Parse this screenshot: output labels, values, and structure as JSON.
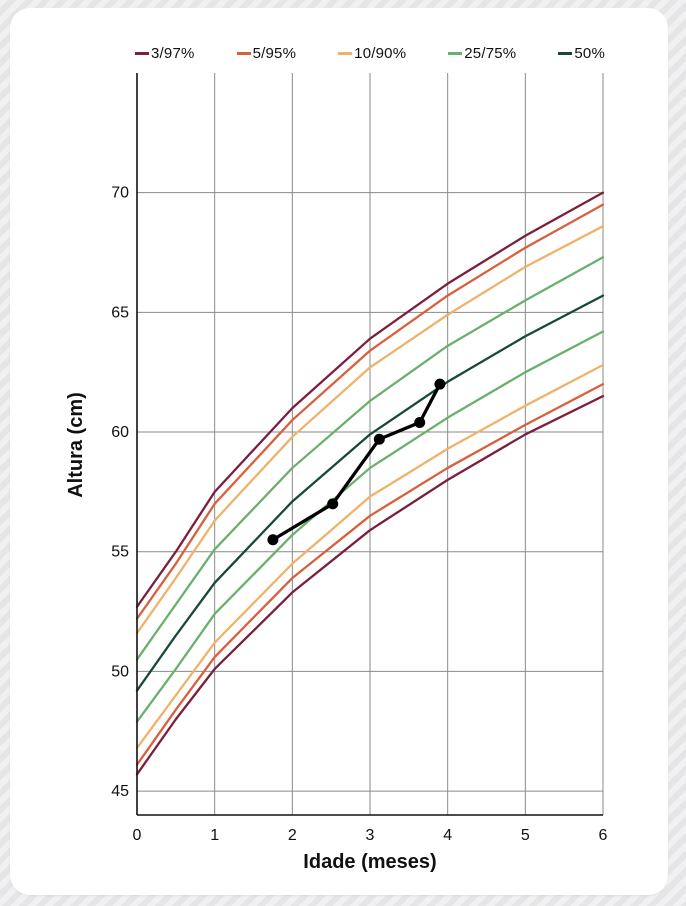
{
  "chart_data": {
    "type": "line",
    "xlabel": "Idade (meses)",
    "ylabel": "Altura (cm)",
    "xlim": [
      0,
      6
    ],
    "ylim": [
      44,
      75
    ],
    "x_ticks": [
      0,
      1,
      2,
      3,
      4,
      5,
      6
    ],
    "y_ticks": [
      45,
      50,
      55,
      60,
      65,
      70
    ],
    "grid": true,
    "legend_position": "top",
    "x": [
      0,
      0.5,
      1,
      2,
      3,
      4,
      5,
      6
    ],
    "series": [
      {
        "name": "3/97%",
        "group": "3/97%",
        "color": "#7a1f3d",
        "values": [
          52.7,
          55.0,
          57.5,
          61.0,
          63.9,
          66.2,
          68.2,
          70.0
        ]
      },
      {
        "name": "5/95%",
        "group": "5/95%",
        "color": "#d9603c",
        "values": [
          52.2,
          54.5,
          57.0,
          60.5,
          63.4,
          65.7,
          67.7,
          69.5
        ]
      },
      {
        "name": "10/90%",
        "group": "10/90%",
        "color": "#f0b26b",
        "values": [
          51.6,
          53.9,
          56.3,
          59.8,
          62.7,
          64.9,
          66.9,
          68.6
        ]
      },
      {
        "name": "25/75%",
        "group": "25/75%",
        "color": "#6ab06d",
        "values": [
          50.5,
          52.8,
          55.1,
          58.5,
          61.3,
          63.6,
          65.5,
          67.3
        ]
      },
      {
        "name": "50%",
        "group": "50%",
        "color": "#17493a",
        "values": [
          49.2,
          51.5,
          53.7,
          57.1,
          59.9,
          62.1,
          64.0,
          65.7
        ]
      },
      {
        "group": "25/75%",
        "color": "#6ab06d",
        "values": [
          47.9,
          50.1,
          52.4,
          55.7,
          58.5,
          60.6,
          62.5,
          64.2
        ]
      },
      {
        "group": "10/90%",
        "color": "#f0b26b",
        "values": [
          46.8,
          49.0,
          51.2,
          54.5,
          57.3,
          59.3,
          61.1,
          62.8
        ]
      },
      {
        "group": "5/95%",
        "color": "#d9603c",
        "values": [
          46.1,
          48.4,
          50.6,
          53.9,
          56.5,
          58.5,
          60.3,
          62.0
        ]
      },
      {
        "group": "3/97%",
        "color": "#7a1f3d",
        "values": [
          45.7,
          48.0,
          50.1,
          53.3,
          55.9,
          58.0,
          59.9,
          61.5
        ]
      }
    ],
    "measurements": {
      "color": "#000000",
      "points": [
        {
          "x": 1.75,
          "y": 55.5
        },
        {
          "x": 2.52,
          "y": 57.0
        },
        {
          "x": 3.12,
          "y": 59.7
        },
        {
          "x": 3.64,
          "y": 60.4
        },
        {
          "x": 3.9,
          "y": 62.0
        }
      ]
    },
    "legend": [
      {
        "label": "3/97%",
        "color": "#7a1f3d"
      },
      {
        "label": "5/95%",
        "color": "#d9603c"
      },
      {
        "label": "10/90%",
        "color": "#f0b26b"
      },
      {
        "label": "25/75%",
        "color": "#6ab06d"
      },
      {
        "label": "50%",
        "color": "#17493a"
      }
    ]
  }
}
